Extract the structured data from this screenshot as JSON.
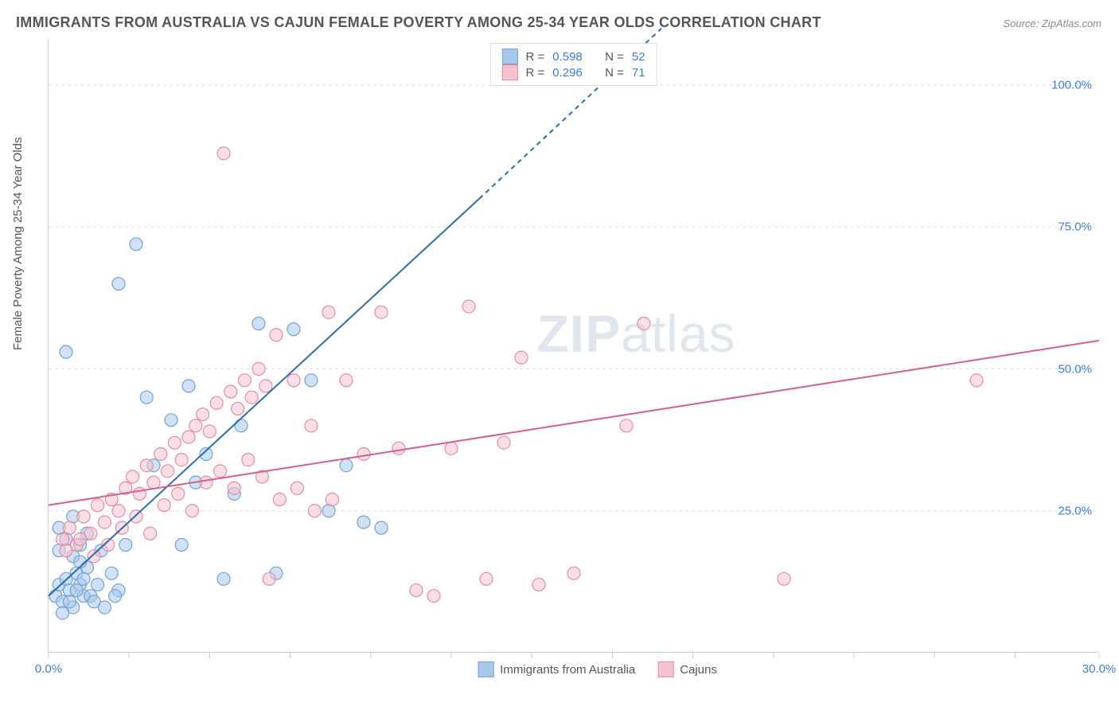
{
  "title": "IMMIGRANTS FROM AUSTRALIA VS CAJUN FEMALE POVERTY AMONG 25-34 YEAR OLDS CORRELATION CHART",
  "source": "Source: ZipAtlas.com",
  "ylabel": "Female Poverty Among 25-34 Year Olds",
  "watermark_bold": "ZIP",
  "watermark_rest": "atlas",
  "chart": {
    "type": "scatter",
    "xlim": [
      0,
      30
    ],
    "ylim": [
      0,
      108
    ],
    "xtick_positions": [
      0,
      2.3,
      4.6,
      6.9,
      9.2,
      11.5,
      13.8,
      16.1,
      18.4,
      20.7,
      23.0,
      25.3,
      27.6,
      30.0
    ],
    "xtick_labels": [
      {
        "pos": 0,
        "text": "0.0%"
      },
      {
        "pos": 30,
        "text": "30.0%"
      }
    ],
    "ytick_labels": [
      {
        "pos": 25,
        "text": "25.0%"
      },
      {
        "pos": 50,
        "text": "50.0%"
      },
      {
        "pos": 75,
        "text": "75.0%"
      },
      {
        "pos": 100,
        "text": "100.0%"
      }
    ],
    "gridlines_y": [
      25,
      50,
      75,
      100
    ],
    "background_color": "#ffffff",
    "grid_color": "#dddddd",
    "axis_color": "#cccccc",
    "marker_radius": 8,
    "marker_stroke_width": 1.2,
    "line_width": 2,
    "series": [
      {
        "name": "Immigrants from Australia",
        "color_fill": "#a8c8ea",
        "color_stroke": "#6fa3d8",
        "line_color": "#2b6cb0",
        "R": "0.598",
        "N": "52",
        "regression": {
          "x1": 0,
          "y1": 10,
          "x2": 12.3,
          "y2": 80,
          "dash_x2": 17.5,
          "dash_y2": 110
        },
        "points": [
          [
            0.2,
            10
          ],
          [
            0.3,
            12
          ],
          [
            0.4,
            9
          ],
          [
            0.5,
            13
          ],
          [
            0.6,
            11
          ],
          [
            0.7,
            8
          ],
          [
            0.8,
            14
          ],
          [
            0.9,
            12
          ],
          [
            1.0,
            10
          ],
          [
            0.3,
            18
          ],
          [
            0.5,
            20
          ],
          [
            0.7,
            17
          ],
          [
            0.9,
            19
          ],
          [
            1.1,
            15
          ],
          [
            0.4,
            7
          ],
          [
            0.6,
            9
          ],
          [
            0.8,
            11
          ],
          [
            1.0,
            13
          ],
          [
            1.2,
            10
          ],
          [
            1.4,
            12
          ],
          [
            1.5,
            18
          ],
          [
            1.8,
            14
          ],
          [
            2.0,
            11
          ],
          [
            2.2,
            19
          ],
          [
            1.3,
            9
          ],
          [
            1.6,
            8
          ],
          [
            1.9,
            10
          ],
          [
            0.5,
            53
          ],
          [
            2.0,
            65
          ],
          [
            2.5,
            72
          ],
          [
            2.8,
            45
          ],
          [
            3.0,
            33
          ],
          [
            3.5,
            41
          ],
          [
            4.0,
            47
          ],
          [
            4.2,
            30
          ],
          [
            4.5,
            35
          ],
          [
            5.0,
            13
          ],
          [
            5.5,
            40
          ],
          [
            6.0,
            58
          ],
          [
            6.5,
            14
          ],
          [
            7.0,
            57
          ],
          [
            7.5,
            48
          ],
          [
            8.0,
            25
          ],
          [
            8.5,
            33
          ],
          [
            9.0,
            23
          ],
          [
            9.5,
            22
          ],
          [
            0.3,
            22
          ],
          [
            0.7,
            24
          ],
          [
            1.1,
            21
          ],
          [
            0.9,
            16
          ],
          [
            5.3,
            28
          ],
          [
            3.8,
            19
          ]
        ]
      },
      {
        "name": "Cajuns",
        "color_fill": "#f5c2cf",
        "color_stroke": "#e68aa3",
        "line_color": "#d95f82",
        "R": "0.296",
        "N": "71",
        "regression": {
          "x1": 0,
          "y1": 26,
          "x2": 30,
          "y2": 55
        },
        "points": [
          [
            0.4,
            20
          ],
          [
            0.6,
            22
          ],
          [
            0.8,
            19
          ],
          [
            1.0,
            24
          ],
          [
            1.2,
            21
          ],
          [
            1.4,
            26
          ],
          [
            1.6,
            23
          ],
          [
            1.8,
            27
          ],
          [
            2.0,
            25
          ],
          [
            2.2,
            29
          ],
          [
            2.4,
            31
          ],
          [
            2.6,
            28
          ],
          [
            2.8,
            33
          ],
          [
            3.0,
            30
          ],
          [
            3.2,
            35
          ],
          [
            3.4,
            32
          ],
          [
            3.6,
            37
          ],
          [
            3.8,
            34
          ],
          [
            4.0,
            38
          ],
          [
            4.2,
            40
          ],
          [
            4.4,
            42
          ],
          [
            4.6,
            39
          ],
          [
            4.8,
            44
          ],
          [
            5.0,
            88
          ],
          [
            5.2,
            46
          ],
          [
            5.4,
            43
          ],
          [
            5.6,
            48
          ],
          [
            5.8,
            45
          ],
          [
            6.0,
            50
          ],
          [
            6.2,
            47
          ],
          [
            6.5,
            56
          ],
          [
            7.0,
            48
          ],
          [
            7.5,
            40
          ],
          [
            8.0,
            60
          ],
          [
            8.5,
            48
          ],
          [
            9.0,
            35
          ],
          [
            9.5,
            60
          ],
          [
            10.0,
            36
          ],
          [
            10.5,
            11
          ],
          [
            11.0,
            10
          ],
          [
            11.5,
            36
          ],
          [
            12.0,
            61
          ],
          [
            12.5,
            13
          ],
          [
            13.0,
            37
          ],
          [
            13.5,
            52
          ],
          [
            14.0,
            12
          ],
          [
            15.0,
            14
          ],
          [
            16.5,
            40
          ],
          [
            17.0,
            58
          ],
          [
            21.0,
            13
          ],
          [
            26.5,
            48
          ],
          [
            0.5,
            18
          ],
          [
            0.9,
            20
          ],
          [
            1.3,
            17
          ],
          [
            1.7,
            19
          ],
          [
            2.1,
            22
          ],
          [
            2.5,
            24
          ],
          [
            2.9,
            21
          ],
          [
            3.3,
            26
          ],
          [
            3.7,
            28
          ],
          [
            4.1,
            25
          ],
          [
            4.5,
            30
          ],
          [
            4.9,
            32
          ],
          [
            5.3,
            29
          ],
          [
            5.7,
            34
          ],
          [
            6.1,
            31
          ],
          [
            6.6,
            27
          ],
          [
            7.1,
            29
          ],
          [
            7.6,
            25
          ],
          [
            8.1,
            27
          ],
          [
            6.3,
            13
          ]
        ]
      }
    ],
    "legend_top": {
      "rows": [
        {
          "swatch_fill": "#a8c8ea",
          "swatch_stroke": "#6fa3d8",
          "r_label": "R =",
          "r_val": "0.598",
          "n_label": "N =",
          "n_val": "52"
        },
        {
          "swatch_fill": "#f5c2cf",
          "swatch_stroke": "#e68aa3",
          "r_label": "R =",
          "r_val": "0.296",
          "n_label": "N =",
          "n_val": "71"
        }
      ]
    },
    "legend_bottom": [
      {
        "swatch_fill": "#a8c8ea",
        "swatch_stroke": "#6fa3d8",
        "label": "Immigrants from Australia"
      },
      {
        "swatch_fill": "#f5c2cf",
        "swatch_stroke": "#e68aa3",
        "label": "Cajuns"
      }
    ]
  }
}
